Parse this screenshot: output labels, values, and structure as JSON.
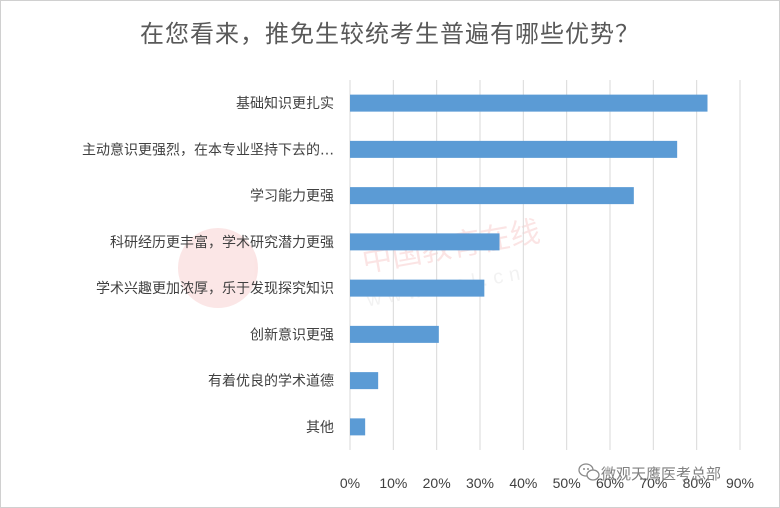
{
  "chart_data": {
    "type": "bar",
    "orientation": "horizontal",
    "title": "在您看来，推免生较统考生普遍有哪些优势？",
    "categories": [
      "基础知识更扎实",
      "主动意识更强烈，在本专业坚持下去的…",
      "学习能力更强",
      "科研经历更丰富，学术研究潜力更强",
      "学术兴趣更加浓厚，乐于发现探究知识",
      "创新意识更强",
      "有着优良的学术道德",
      "其他"
    ],
    "values": [
      82.5,
      75.5,
      65.5,
      34.5,
      31,
      20.5,
      6.5,
      3.5
    ],
    "xlim": [
      0,
      90
    ],
    "xticks": [
      "0%",
      "10%",
      "20%",
      "30%",
      "40%",
      "50%",
      "60%",
      "70%",
      "80%",
      "90%"
    ],
    "grid": true,
    "bar_color": "#5b9bd5",
    "grid_color": "#d9d9d9"
  },
  "watermark": {
    "text": "微观天鹰医考总部",
    "icon": "wechat-icon",
    "logo_text": "中国教育在线",
    "logo_url_text": "www.eol.cn"
  }
}
